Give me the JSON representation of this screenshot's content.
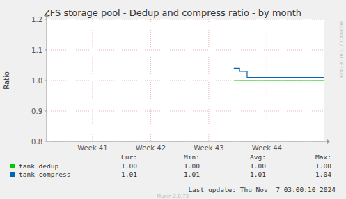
{
  "chart_data": {
    "type": "line",
    "title": "ZFS storage pool - Dedup and compress ratio - by month",
    "ylabel": "Ratio",
    "xlim": [
      40.71,
      45.49
    ],
    "xticks": [
      {
        "value": 41.5,
        "label": "Week 41"
      },
      {
        "value": 42.5,
        "label": "Week 42"
      },
      {
        "value": 43.5,
        "label": "Week 43"
      },
      {
        "value": 44.5,
        "label": "Week 44"
      }
    ],
    "ylim": [
      0.8,
      1.2
    ],
    "yticks": [
      0.8,
      0.9,
      {
        "value": 1,
        "label": "1.0"
      },
      1.1,
      1.2
    ],
    "grid": true,
    "line_style": "step",
    "stats_columns": [
      "Cur:",
      "Min:",
      "Avg:",
      "Max:"
    ],
    "series": [
      {
        "name": "tank dedup",
        "color": "#00cc00",
        "x": [
          43.93,
          45.48
        ],
        "values": [
          1,
          1
        ],
        "stats": {
          "values": [
            1,
            1,
            1,
            1
          ],
          "value_labels": [
            "1.00",
            "1.00",
            "1.00",
            "1.00"
          ]
        }
      },
      {
        "name": "tank compress",
        "color": "#0066b3",
        "x": [
          43.93,
          44.03,
          44.16,
          45.48
        ],
        "values": [
          1.04,
          1.03,
          1.01,
          1.01
        ],
        "stats": {
          "values": [
            1.01,
            1.01,
            1.01,
            1.04
          ],
          "value_labels": [
            "1.01",
            "1.01",
            "1.01",
            "1.04"
          ]
        }
      }
    ],
    "footer": "Last update: Thu Nov  7 03:00:10 2024",
    "credit": "Munin 2.0.73",
    "watermark": "RRDTOOL / TOBI OETIKER"
  }
}
